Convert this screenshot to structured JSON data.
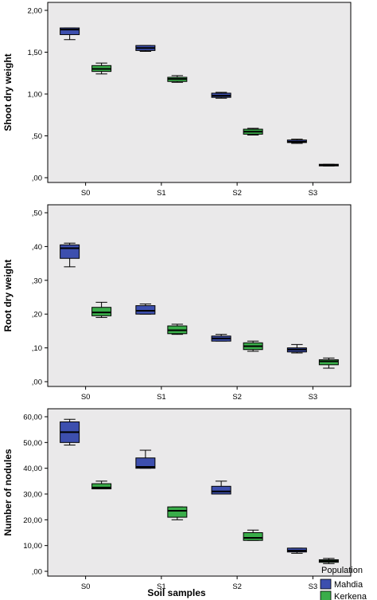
{
  "figure": {
    "xlabel": "Soil samples",
    "legend": {
      "title": "Population",
      "items": [
        {
          "label": "Mahdia",
          "color": "#3d4fae"
        },
        {
          "label": "Kerkena",
          "color": "#3aad4a"
        }
      ]
    },
    "colors": {
      "panel_bg": "#eae9ea",
      "border": "#000000"
    }
  },
  "chart_data": [
    {
      "type": "box",
      "ylabel": "Shoot dry weight",
      "categories": [
        "S0",
        "S1",
        "S2",
        "S3"
      ],
      "ylim": [
        0,
        2.0
      ],
      "yticks": [
        0,
        0.5,
        1.0,
        1.5,
        2.0
      ],
      "yticklabels": [
        ",00",
        ",50",
        "1,00",
        "1,50",
        "2,00"
      ],
      "grid": false,
      "series": [
        {
          "name": "Mahdia",
          "boxes": [
            {
              "min": 1.65,
              "q1": 1.71,
              "median": 1.77,
              "q3": 1.79,
              "max": 1.79
            },
            {
              "min": 1.51,
              "q1": 1.52,
              "median": 1.55,
              "q3": 1.58,
              "max": 1.58
            },
            {
              "min": 0.95,
              "q1": 0.96,
              "median": 0.98,
              "q3": 1.01,
              "max": 1.02
            },
            {
              "min": 0.41,
              "q1": 0.42,
              "median": 0.43,
              "q3": 0.45,
              "max": 0.46
            }
          ]
        },
        {
          "name": "Kerkena",
          "boxes": [
            {
              "min": 1.24,
              "q1": 1.27,
              "median": 1.3,
              "q3": 1.34,
              "max": 1.37
            },
            {
              "min": 1.14,
              "q1": 1.15,
              "median": 1.18,
              "q3": 1.2,
              "max": 1.22
            },
            {
              "min": 0.51,
              "q1": 0.52,
              "median": 0.55,
              "q3": 0.58,
              "max": 0.59
            },
            {
              "min": 0.14,
              "q1": 0.145,
              "median": 0.15,
              "q3": 0.16,
              "max": 0.16
            }
          ]
        }
      ]
    },
    {
      "type": "box",
      "ylabel": "Root dry weight",
      "categories": [
        "S0",
        "S1",
        "S2",
        "S3"
      ],
      "ylim": [
        0,
        0.5
      ],
      "yticks": [
        0,
        0.1,
        0.2,
        0.3,
        0.4,
        0.5
      ],
      "yticklabels": [
        ",00",
        ",10",
        ",20",
        ",30",
        ",40",
        ",50"
      ],
      "grid": false,
      "series": [
        {
          "name": "Mahdia",
          "boxes": [
            {
              "min": 0.34,
              "q1": 0.365,
              "median": 0.395,
              "q3": 0.405,
              "max": 0.41
            },
            {
              "min": 0.2,
              "q1": 0.2,
              "median": 0.21,
              "q3": 0.225,
              "max": 0.23
            },
            {
              "min": 0.12,
              "q1": 0.12,
              "median": 0.128,
              "q3": 0.135,
              "max": 0.14
            },
            {
              "min": 0.085,
              "q1": 0.088,
              "median": 0.095,
              "q3": 0.1,
              "max": 0.11
            }
          ]
        },
        {
          "name": "Kerkena",
          "boxes": [
            {
              "min": 0.19,
              "q1": 0.195,
              "median": 0.205,
              "q3": 0.22,
              "max": 0.235
            },
            {
              "min": 0.14,
              "q1": 0.142,
              "median": 0.152,
              "q3": 0.165,
              "max": 0.17
            },
            {
              "min": 0.09,
              "q1": 0.095,
              "median": 0.105,
              "q3": 0.115,
              "max": 0.12
            },
            {
              "min": 0.04,
              "q1": 0.05,
              "median": 0.06,
              "q3": 0.065,
              "max": 0.07
            }
          ]
        }
      ]
    },
    {
      "type": "box",
      "ylabel": "Number of nodules",
      "categories": [
        "S0",
        "S1",
        "S2",
        "S3"
      ],
      "ylim": [
        0,
        60
      ],
      "yticks": [
        0,
        10,
        20,
        30,
        40,
        50,
        60
      ],
      "yticklabels": [
        ",00",
        "10,00",
        "20,00",
        "30,00",
        "40,00",
        "50,00",
        "60,00"
      ],
      "grid": false,
      "series": [
        {
          "name": "Mahdia",
          "boxes": [
            {
              "min": 49,
              "q1": 50,
              "median": 54,
              "q3": 58,
              "max": 59
            },
            {
              "min": 40,
              "q1": 40,
              "median": 40.5,
              "q3": 44,
              "max": 47
            },
            {
              "min": 30,
              "q1": 30,
              "median": 31,
              "q3": 33,
              "max": 35
            },
            {
              "min": 7,
              "q1": 7.5,
              "median": 8,
              "q3": 9,
              "max": 9
            }
          ]
        },
        {
          "name": "Kerkena",
          "boxes": [
            {
              "min": 32,
              "q1": 32,
              "median": 32.5,
              "q3": 34,
              "max": 35
            },
            {
              "min": 20,
              "q1": 21,
              "median": 23.5,
              "q3": 25,
              "max": 25
            },
            {
              "min": 12,
              "q1": 12,
              "median": 13,
              "q3": 15,
              "max": 16
            },
            {
              "min": 3,
              "q1": 3.5,
              "median": 4,
              "q3": 4.5,
              "max": 5
            }
          ]
        }
      ]
    }
  ]
}
